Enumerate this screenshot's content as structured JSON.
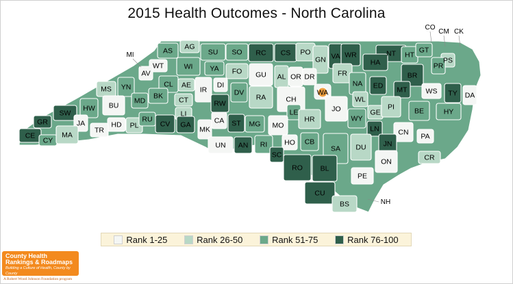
{
  "title": "2015 Health Outcomes - North Carolina",
  "colors": {
    "rank_1_25": "#f4f6f4",
    "rank_26_50": "#b8d8c6",
    "rank_51_75": "#6ba88a",
    "rank_76_100": "#2f5f4b",
    "highlight": "#f0a040"
  },
  "legend": [
    {
      "label": "Rank 1-25",
      "color": "#f4f6f4"
    },
    {
      "label": "Rank 26-50",
      "color": "#b8d8c6"
    },
    {
      "label": "Rank 51-75",
      "color": "#6ba88a"
    },
    {
      "label": "Rank 76-100",
      "color": "#2f5f4b"
    }
  ],
  "counties": [
    {
      "code": "AS",
      "quartile": 3
    },
    {
      "code": "AG",
      "quartile": 2
    },
    {
      "code": "SU",
      "quartile": 3
    },
    {
      "code": "SO",
      "quartile": 3
    },
    {
      "code": "RC",
      "quartile": 4
    },
    {
      "code": "CS",
      "quartile": 4
    },
    {
      "code": "PO",
      "quartile": 2
    },
    {
      "code": "GN",
      "quartile": 2
    },
    {
      "code": "VA",
      "quartile": 4
    },
    {
      "code": "WR",
      "quartile": 4
    },
    {
      "code": "NT",
      "quartile": 4
    },
    {
      "code": "HT",
      "quartile": 3
    },
    {
      "code": "GT",
      "quartile": 3
    },
    {
      "code": "CO",
      "quartile": 2
    },
    {
      "code": "CM",
      "quartile": 1
    },
    {
      "code": "CK",
      "quartile": 1
    },
    {
      "code": "PS",
      "quartile": 2
    },
    {
      "code": "PR",
      "quartile": 3
    },
    {
      "code": "MI",
      "quartile": 2
    },
    {
      "code": "WT",
      "quartile": 1
    },
    {
      "code": "AV",
      "quartile": 1
    },
    {
      "code": "WI",
      "quartile": 3
    },
    {
      "code": "YA",
      "quartile": 3
    },
    {
      "code": "FO",
      "quartile": 2
    },
    {
      "code": "GU",
      "quartile": 1
    },
    {
      "code": "AL",
      "quartile": 2
    },
    {
      "code": "OR",
      "quartile": 1
    },
    {
      "code": "DR",
      "quartile": 1
    },
    {
      "code": "FR",
      "quartile": 2
    },
    {
      "code": "HA",
      "quartile": 4
    },
    {
      "code": "BR",
      "quartile": 4
    },
    {
      "code": "MS",
      "quartile": 2
    },
    {
      "code": "YN",
      "quartile": 3
    },
    {
      "code": "CL",
      "quartile": 3
    },
    {
      "code": "AE",
      "quartile": 2
    },
    {
      "code": "IR",
      "quartile": 1
    },
    {
      "code": "DI",
      "quartile": 1
    },
    {
      "code": "DV",
      "quartile": 3
    },
    {
      "code": "RA",
      "quartile": 2
    },
    {
      "code": "CH",
      "quartile": 1
    },
    {
      "code": "WA",
      "quartile": 1
    },
    {
      "code": "NA",
      "quartile": 3
    },
    {
      "code": "ED",
      "quartile": 4
    },
    {
      "code": "MT",
      "quartile": 4
    },
    {
      "code": "WS",
      "quartile": 1
    },
    {
      "code": "TY",
      "quartile": 4
    },
    {
      "code": "DA",
      "quartile": 1
    },
    {
      "code": "MD",
      "quartile": 3
    },
    {
      "code": "BK",
      "quartile": 3
    },
    {
      "code": "CT",
      "quartile": 2
    },
    {
      "code": "BU",
      "quartile": 1
    },
    {
      "code": "HW",
      "quartile": 3
    },
    {
      "code": "SW",
      "quartile": 4
    },
    {
      "code": "GR",
      "quartile": 4
    },
    {
      "code": "LI",
      "quartile": 2
    },
    {
      "code": "RW",
      "quartile": 4
    },
    {
      "code": "LE",
      "quartile": 3
    },
    {
      "code": "JO",
      "quartile": 1
    },
    {
      "code": "WL",
      "quartile": 2
    },
    {
      "code": "GE",
      "quartile": 2
    },
    {
      "code": "PI",
      "quartile": 2
    },
    {
      "code": "BE",
      "quartile": 3
    },
    {
      "code": "HY",
      "quartile": 3
    },
    {
      "code": "JA",
      "quartile": 1
    },
    {
      "code": "HD",
      "quartile": 1
    },
    {
      "code": "PL",
      "quartile": 2
    },
    {
      "code": "RU",
      "quartile": 3
    },
    {
      "code": "CV",
      "quartile": 4
    },
    {
      "code": "GA",
      "quartile": 4
    },
    {
      "code": "MK",
      "quartile": 1
    },
    {
      "code": "CA",
      "quartile": 1
    },
    {
      "code": "ST",
      "quartile": 4
    },
    {
      "code": "MG",
      "quartile": 3
    },
    {
      "code": "MO",
      "quartile": 1
    },
    {
      "code": "HR",
      "quartile": 2
    },
    {
      "code": "WY",
      "quartile": 3
    },
    {
      "code": "LN",
      "quartile": 4
    },
    {
      "code": "CN",
      "quartile": 1
    },
    {
      "code": "PA",
      "quartile": 1
    },
    {
      "code": "CE",
      "quartile": 4
    },
    {
      "code": "CY",
      "quartile": 3
    },
    {
      "code": "MA",
      "quartile": 2
    },
    {
      "code": "TR",
      "quartile": 1
    },
    {
      "code": "UN",
      "quartile": 1
    },
    {
      "code": "AN",
      "quartile": 4
    },
    {
      "code": "RI",
      "quartile": 3
    },
    {
      "code": "HO",
      "quartile": 1
    },
    {
      "code": "CB",
      "quartile": 3
    },
    {
      "code": "SA",
      "quartile": 3
    },
    {
      "code": "DU",
      "quartile": 2
    },
    {
      "code": "JN",
      "quartile": 4
    },
    {
      "code": "CR",
      "quartile": 2
    },
    {
      "code": "SC",
      "quartile": 4
    },
    {
      "code": "RO",
      "quartile": 4
    },
    {
      "code": "BL",
      "quartile": 4
    },
    {
      "code": "ON",
      "quartile": 1
    },
    {
      "code": "PE",
      "quartile": 1
    },
    {
      "code": "CU",
      "quartile": 4
    },
    {
      "code": "BS",
      "quartile": 2
    },
    {
      "code": "NH",
      "quartile": 1
    }
  ],
  "highlighted_county": "WA",
  "logo": {
    "line1": "County Health",
    "line2": "Rankings & Roadmaps",
    "line3": "Building a Culture of Health, County by County",
    "sponsor": "A Robert Wood Johnson Foundation program"
  }
}
